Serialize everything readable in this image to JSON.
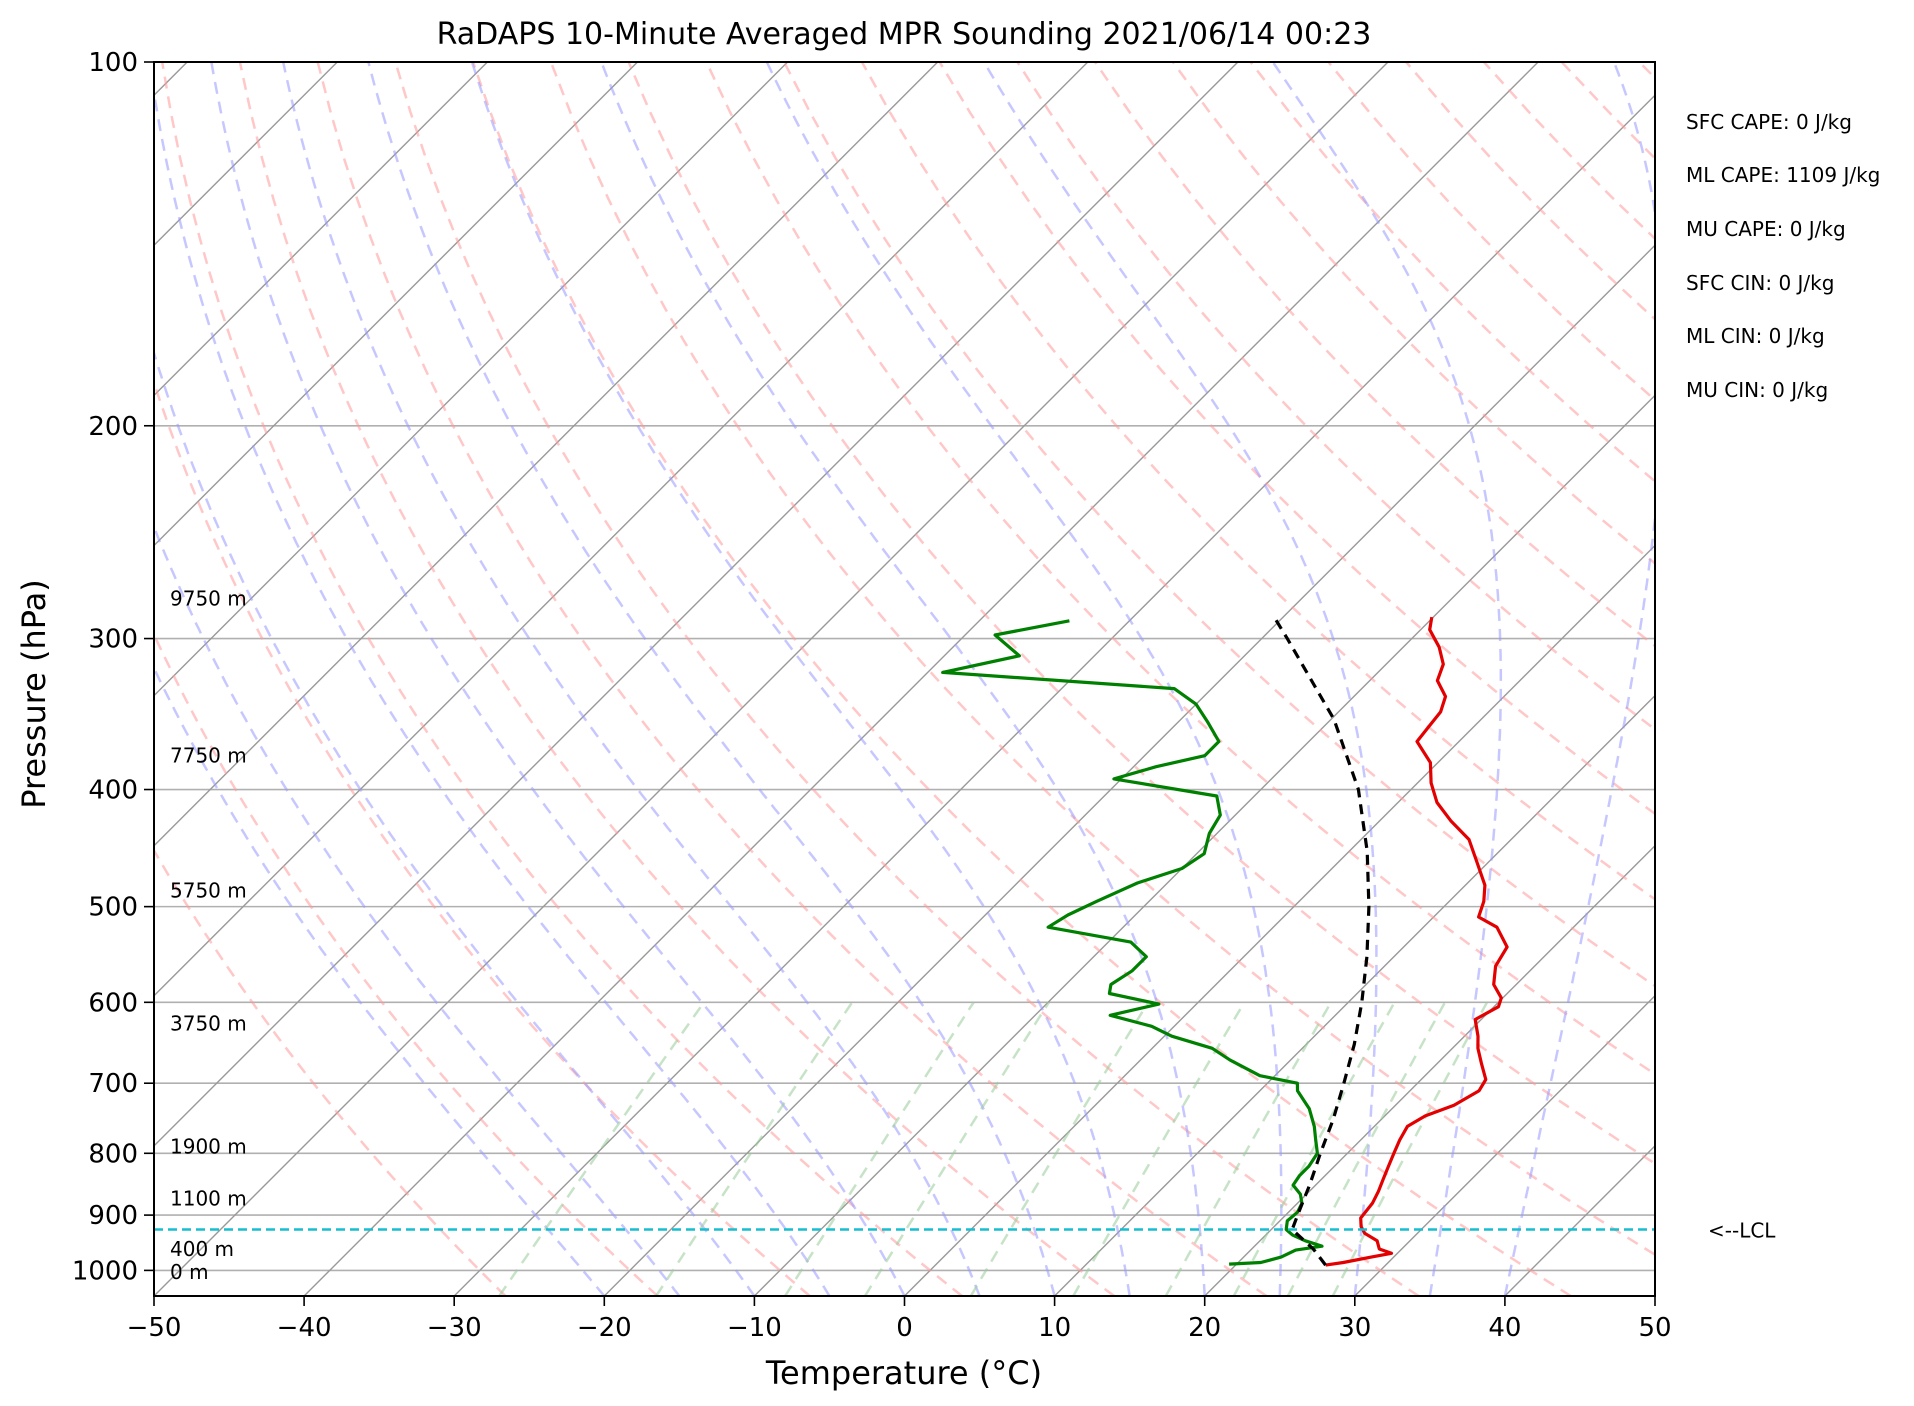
{
  "chart_data": {
    "type": "line",
    "title": "RaDAPS 10-Minute Averaged MPR Sounding 2021/06/14 00:23",
    "xlabel": "Temperature (°C)",
    "ylabel": "Pressure (hPa)",
    "xlim": [
      -50,
      50
    ],
    "ylim": [
      1050,
      100
    ],
    "y_scale": "log",
    "skew": "skew-T",
    "x_ticks": [
      -50,
      -40,
      -30,
      -20,
      -10,
      0,
      10,
      20,
      30,
      40,
      50
    ],
    "y_ticks": [
      100,
      200,
      300,
      400,
      500,
      600,
      700,
      800,
      900,
      1000
    ],
    "grid": true,
    "colors": {
      "temperature": "#e30000",
      "dewpoint": "#008000",
      "parcel": "#000000",
      "lcl": "#17becf",
      "dry_adiabats": "#ff9999",
      "moist_adiabats": "#9999ff",
      "mixing_ratio": "#99cc99",
      "isotherms": "#999999"
    },
    "series": [
      {
        "key": "temperature",
        "points": [
          [
            990,
            26.0
          ],
          [
            985,
            27.0
          ],
          [
            975,
            28.5
          ],
          [
            968,
            29.6
          ],
          [
            960,
            28.5
          ],
          [
            945,
            27.8
          ],
          [
            932,
            26.5
          ],
          [
            920,
            25.8
          ],
          [
            905,
            25.2
          ],
          [
            880,
            25.0
          ],
          [
            860,
            24.6
          ],
          [
            840,
            24.1
          ],
          [
            820,
            23.6
          ],
          [
            800,
            23.1
          ],
          [
            780,
            22.6
          ],
          [
            760,
            22.2
          ],
          [
            745,
            22.7
          ],
          [
            730,
            23.9
          ],
          [
            710,
            24.6
          ],
          [
            695,
            24.3
          ],
          [
            675,
            23.0
          ],
          [
            655,
            21.7
          ],
          [
            640,
            20.9
          ],
          [
            620,
            19.6
          ],
          [
            605,
            20.3
          ],
          [
            595,
            19.9
          ],
          [
            580,
            18.5
          ],
          [
            560,
            17.4
          ],
          [
            540,
            16.9
          ],
          [
            520,
            14.9
          ],
          [
            510,
            13.0
          ],
          [
            495,
            12.3
          ],
          [
            480,
            11.3
          ],
          [
            460,
            9.3
          ],
          [
            440,
            7.2
          ],
          [
            425,
            4.8
          ],
          [
            410,
            2.6
          ],
          [
            395,
            0.9
          ],
          [
            380,
            -0.5
          ],
          [
            365,
            -2.8
          ],
          [
            355,
            -3.0
          ],
          [
            345,
            -3.2
          ],
          [
            335,
            -3.9
          ],
          [
            325,
            -5.5
          ],
          [
            315,
            -6.2
          ],
          [
            305,
            -7.6
          ],
          [
            295,
            -9.4
          ],
          [
            288,
            -10.1
          ]
        ]
      },
      {
        "key": "dewpoint",
        "points": [
          [
            988,
            19.5
          ],
          [
            985,
            21.5
          ],
          [
            975,
            22.5
          ],
          [
            962,
            23.0
          ],
          [
            955,
            24.5
          ],
          [
            945,
            23.0
          ],
          [
            935,
            21.8
          ],
          [
            925,
            21.0
          ],
          [
            910,
            20.5
          ],
          [
            895,
            20.6
          ],
          [
            880,
            20.3
          ],
          [
            865,
            19.6
          ],
          [
            850,
            18.5
          ],
          [
            835,
            18.3
          ],
          [
            820,
            18.3
          ],
          [
            800,
            18.0
          ],
          [
            780,
            17.0
          ],
          [
            760,
            16.0
          ],
          [
            735,
            14.5
          ],
          [
            710,
            12.5
          ],
          [
            700,
            12.0
          ],
          [
            690,
            9.0
          ],
          [
            670,
            6.0
          ],
          [
            655,
            4.0
          ],
          [
            640,
            0.5
          ],
          [
            628,
            -1.5
          ],
          [
            615,
            -5.0
          ],
          [
            602,
            -2.5
          ],
          [
            590,
            -6.5
          ],
          [
            580,
            -7.0
          ],
          [
            565,
            -6.5
          ],
          [
            550,
            -6.5
          ],
          [
            535,
            -8.5
          ],
          [
            520,
            -15.0
          ],
          [
            508,
            -14.5
          ],
          [
            495,
            -13.5
          ],
          [
            478,
            -12.0
          ],
          [
            465,
            -10.0
          ],
          [
            452,
            -9.5
          ],
          [
            435,
            -10.5
          ],
          [
            420,
            -11.0
          ],
          [
            405,
            -12.5
          ],
          [
            392,
            -20.5
          ],
          [
            383,
            -18.5
          ],
          [
            375,
            -16.0
          ],
          [
            365,
            -16.0
          ],
          [
            352,
            -18.0
          ],
          [
            340,
            -20.0
          ],
          [
            330,
            -22.5
          ],
          [
            320,
            -39.0
          ],
          [
            310,
            -35.0
          ],
          [
            298,
            -38.0
          ],
          [
            290,
            -34.0
          ]
        ]
      },
      {
        "key": "parcel",
        "points": [
          [
            990,
            26.0
          ],
          [
            960,
            24.1
          ],
          [
            925,
            21.4
          ],
          [
            900,
            20.8
          ],
          [
            850,
            19.6
          ],
          [
            800,
            18.2
          ],
          [
            750,
            16.8
          ],
          [
            700,
            15.1
          ],
          [
            650,
            13.2
          ],
          [
            600,
            10.9
          ],
          [
            550,
            8.2
          ],
          [
            500,
            5.0
          ],
          [
            450,
            1.2
          ],
          [
            400,
            -3.5
          ],
          [
            350,
            -9.8
          ],
          [
            300,
            -18.3
          ],
          [
            288,
            -20.6
          ]
        ]
      }
    ],
    "lcl_pressure": 925,
    "lcl_label": "<--LCL",
    "height_labels": [
      {
        "p": 1003,
        "text": "0 m"
      },
      {
        "p": 960,
        "text": "400 m"
      },
      {
        "p": 872,
        "text": "1100 m"
      },
      {
        "p": 790,
        "text": "1900 m"
      },
      {
        "p": 625,
        "text": "3750 m"
      },
      {
        "p": 485,
        "text": "5750 m"
      },
      {
        "p": 375,
        "text": "7750 m"
      },
      {
        "p": 278,
        "text": "9750 m"
      }
    ],
    "stats": [
      "SFC CAPE: 0 J/kg",
      "ML CAPE: 1109 J/kg",
      "MU CAPE: 0 J/kg",
      "SFC CIN: 0 J/kg",
      "ML CIN: 0 J/kg",
      "MU CIN: 0 J/kg"
    ]
  }
}
